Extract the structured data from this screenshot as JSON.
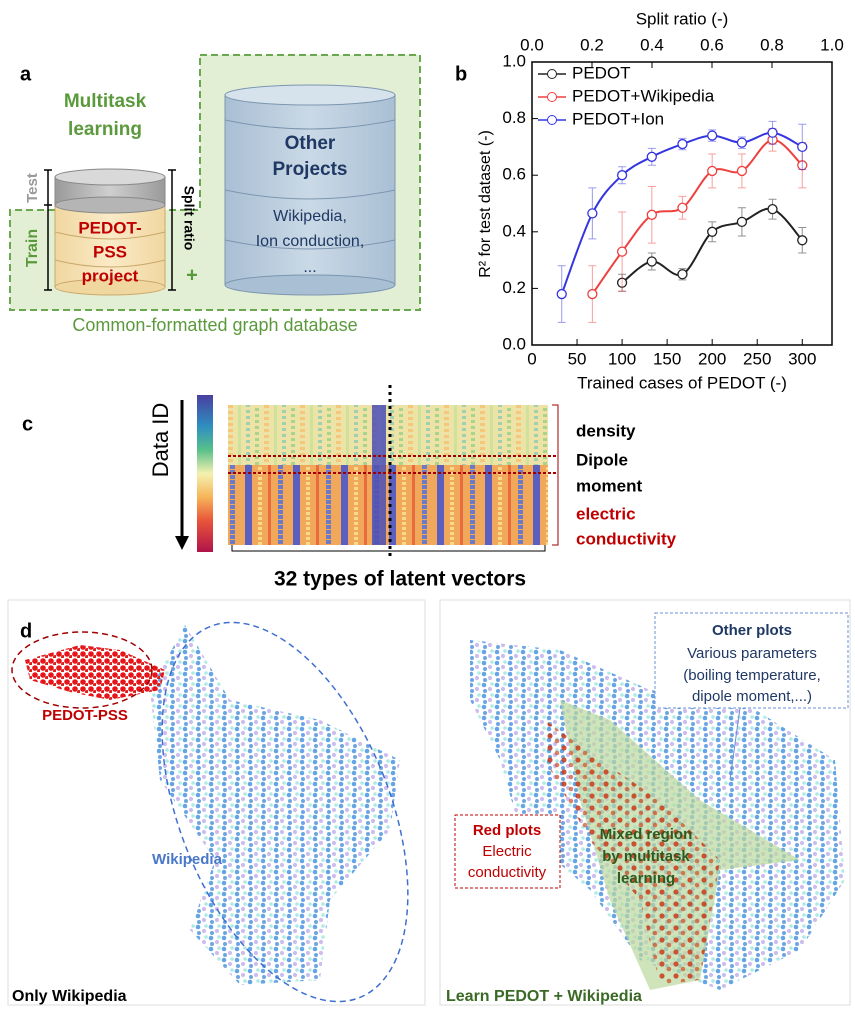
{
  "panel_a": {
    "label": "a",
    "multitask": [
      "Multitask",
      "learning"
    ],
    "test": "Test",
    "train": "Train",
    "split_ratio": "Split ratio",
    "plus": "+",
    "pedot_project": [
      "PEDOT-",
      "PSS",
      "project"
    ],
    "other_projects": [
      "Other",
      "Projects"
    ],
    "other_examples": [
      "Wikipedia,",
      "Ion conduction,",
      "..."
    ],
    "caption": "Common-formatted graph database"
  },
  "panel_b": {
    "label": "b"
  },
  "chart_data": {
    "type": "line",
    "xlabel": "Trained cases of PEDOT (-)",
    "x2label": "Split ratio (-)",
    "ylabel": "R² for test dataset (-)",
    "xlim": [
      0,
      333
    ],
    "xticks": [
      0,
      50,
      100,
      150,
      200,
      250,
      300
    ],
    "x2lim": [
      0,
      1
    ],
    "x2ticks": [
      {
        "value": 0,
        "label": "0.0"
      },
      {
        "value": 0.2,
        "label": "0.2"
      },
      {
        "value": 0.4,
        "label": "0.4"
      },
      {
        "value": 0.6,
        "label": "0.6"
      },
      {
        "value": 0.8,
        "label": "0.8"
      },
      {
        "value": 1,
        "label": "1.0"
      }
    ],
    "ylim": [
      0,
      1
    ],
    "yticks": [
      {
        "value": 0,
        "label": "0.0"
      },
      {
        "value": 0.2,
        "label": "0.2"
      },
      {
        "value": 0.4,
        "label": "0.4"
      },
      {
        "value": 0.6,
        "label": "0.6"
      },
      {
        "value": 0.8,
        "label": "0.8"
      },
      {
        "value": 1,
        "label": "1.0"
      }
    ],
    "legend": "upper left",
    "series": [
      {
        "name": "PEDOT",
        "color": "#222222",
        "x": [
          100,
          133,
          167,
          200,
          233,
          267,
          300
        ],
        "values": [
          0.22,
          0.295,
          0.25,
          0.4,
          0.435,
          0.48,
          0.37
        ],
        "errors": [
          0.03,
          0.03,
          0.02,
          0.035,
          0.05,
          0.035,
          0.045
        ]
      },
      {
        "name": "PEDOT+Wikipedia",
        "color": "#ef4040",
        "x": [
          67,
          100,
          133,
          167,
          200,
          233,
          267,
          300
        ],
        "values": [
          0.18,
          0.33,
          0.46,
          0.485,
          0.615,
          0.615,
          0.725,
          0.635
        ],
        "errors": [
          0.1,
          0.14,
          0.1,
          0.04,
          0.06,
          0.06,
          0.04,
          0.08
        ]
      },
      {
        "name": "PEDOT+Ion",
        "color": "#3535e0",
        "x": [
          33,
          67,
          100,
          133,
          167,
          200,
          233,
          267,
          300
        ],
        "values": [
          0.18,
          0.465,
          0.6,
          0.665,
          0.71,
          0.74,
          0.715,
          0.75,
          0.7
        ],
        "errors": [
          0.1,
          0.09,
          0.03,
          0.03,
          0.02,
          0.02,
          0.02,
          0.04,
          0.08
        ]
      }
    ]
  },
  "panel_c": {
    "label": "c",
    "data_id": "Data ID",
    "rows": [
      "density",
      "Dipole",
      "moment",
      "electric",
      "conductivity"
    ],
    "caption": "32 types of latent vectors"
  },
  "panel_d": {
    "label": "d",
    "pedot_pss": "PEDOT-PSS",
    "wikipedia": "Wikipedia",
    "left_caption": "Only Wikipedia",
    "other_plots": [
      "Other plots",
      "Various parameters",
      "(boiling temperature,",
      "dipole moment,...)"
    ],
    "red_plots": [
      "Red plots",
      "Electric",
      "conductivity"
    ],
    "mixed": [
      "Mixed region",
      "by multitask",
      "learning"
    ],
    "right_caption": "Learn PEDOT + Wikipedia"
  }
}
